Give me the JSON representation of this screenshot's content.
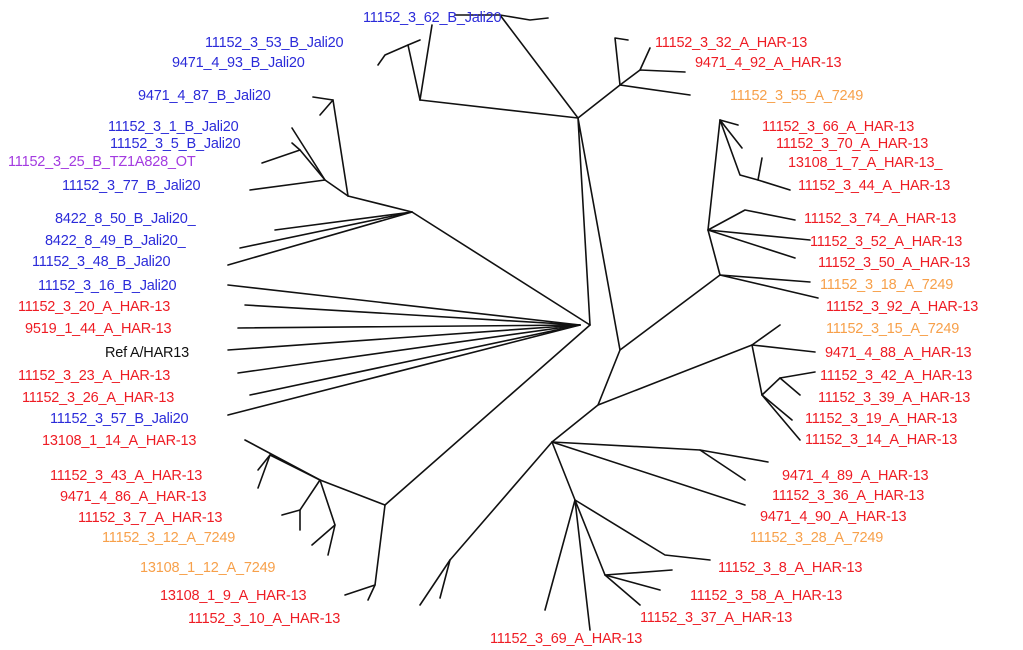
{
  "colors": {
    "B_Jali20": "#2b2bd9",
    "A_HAR13": "#ee1c24",
    "A_7249": "#f7a04a",
    "B_TZ1A828": "#a33be0",
    "reference": "#111111"
  },
  "labels": {
    "l01": "11152_3_62_B_Jali20",
    "l02": "11152_3_53_B_Jali20",
    "l03": "9471_4_93_B_Jali20",
    "l04": "9471_4_87_B_Jali20",
    "l05": "11152_3_1_B_Jali20",
    "l06": "11152_3_5_B_Jali20",
    "l07": "11152_3_25_B_TZ1A828_OT",
    "l08": "11152_3_77_B_Jali20",
    "l09": "8422_8_50_B_Jali20_",
    "l10": "8422_8_49_B_Jali20_",
    "l11": "11152_3_48_B_Jali20",
    "l12": "11152_3_16_B_Jali20",
    "l13": "11152_3_20_A_HAR-13",
    "l14": "9519_1_44_A_HAR-13",
    "l15": "Ref A/HAR13",
    "l16": "11152_3_23_A_HAR-13",
    "l17": "11152_3_26_A_HAR-13",
    "l18": "11152_3_57_B_Jali20",
    "l19": "13108_1_14_A_HAR-13",
    "l20": "11152_3_43_A_HAR-13",
    "l21": "9471_4_86_A_HAR-13",
    "l22": "11152_3_7_A_HAR-13",
    "l23": "11152_3_12_A_7249",
    "l24": "13108_1_12_A_7249",
    "l25": "13108_1_9_A_HAR-13",
    "l26": "11152_3_10_A_HAR-13",
    "l27": "11152_3_69_A_HAR-13",
    "l28": "11152_3_37_A_HAR-13",
    "l29": "11152_3_58_A_HAR-13",
    "l30": "11152_3_8_A_HAR-13",
    "l31": "11152_3_28_A_7249",
    "l32": "9471_4_90_A_HAR-13",
    "l33": "11152_3_36_A_HAR-13",
    "l34": "9471_4_89_A_HAR-13",
    "l35": "11152_3_14_A_HAR-13",
    "l36": "11152_3_19_A_HAR-13",
    "l37": "11152_3_39_A_HAR-13",
    "l38": "11152_3_42_A_HAR-13",
    "l39": "9471_4_88_A_HAR-13",
    "l40": "11152_3_15_A_7249",
    "l41": "11152_3_92_A_HAR-13",
    "l42": "11152_3_18_A_7249",
    "l43": "11152_3_50_A_HAR-13",
    "l44": "11152_3_52_A_HAR-13",
    "l45": "11152_3_74_A_HAR-13",
    "l46": "11152_3_44_A_HAR-13",
    "l47": "13108_1_7_A_HAR-13_",
    "l48": "11152_3_70_A_HAR-13",
    "l49": "11152_3_66_A_HAR-13",
    "l50": "11152_3_55_A_7249",
    "l51": "9471_4_92_A_HAR-13",
    "l52": "11152_3_32_A_HAR-13"
  }
}
